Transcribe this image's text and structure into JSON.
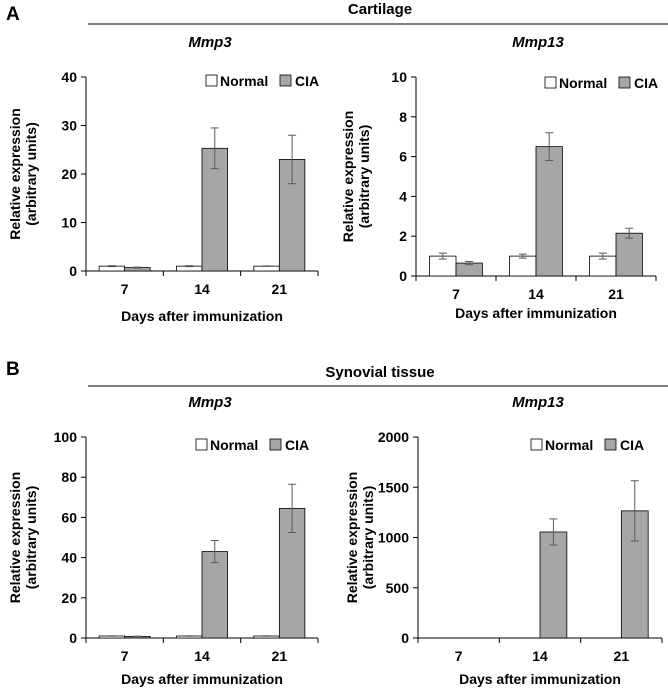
{
  "panels": [
    {
      "label": "A",
      "title": "Cartilage"
    },
    {
      "label": "B",
      "title": "Synovial tissue"
    }
  ],
  "legend": {
    "normal": "Normal",
    "cia": "CIA"
  },
  "colors": {
    "normal": "#ffffff",
    "cia": "#a6a6a6",
    "axis": "#000000",
    "error": "#595959"
  },
  "chart_data": [
    {
      "type": "bar",
      "panel": "A",
      "section": "Cartilage",
      "title": "Mmp3",
      "categories": [
        "7",
        "14",
        "21"
      ],
      "xlabel": "Days after immunization",
      "ylabel_lines": [
        "Relative expression",
        "(arbitrary units)"
      ],
      "ylim": [
        0,
        40
      ],
      "yticks": [
        0,
        10,
        20,
        30,
        40
      ],
      "series": [
        {
          "name": "Normal",
          "values": [
            1,
            1,
            1
          ],
          "errors": [
            0.1,
            0.1,
            0.05
          ]
        },
        {
          "name": "CIA",
          "values": [
            0.7,
            25.3,
            23.0
          ],
          "errors": [
            0.1,
            4.2,
            5.0
          ]
        }
      ],
      "legend_position": "top-right"
    },
    {
      "type": "bar",
      "panel": "A",
      "section": "Cartilage",
      "title": "Mmp13",
      "categories": [
        "7",
        "14",
        "21"
      ],
      "xlabel": "Days after immunization",
      "ylabel_lines": [
        "Relative expression",
        "(arbitrary units)"
      ],
      "ylim": [
        0,
        10
      ],
      "yticks": [
        0,
        2,
        4,
        6,
        8,
        10
      ],
      "series": [
        {
          "name": "Normal",
          "values": [
            1,
            1,
            1
          ],
          "errors": [
            0.15,
            0.1,
            0.15
          ]
        },
        {
          "name": "CIA",
          "values": [
            0.65,
            6.5,
            2.15
          ],
          "errors": [
            0.08,
            0.7,
            0.25
          ]
        }
      ],
      "legend_position": "top-right"
    },
    {
      "type": "bar",
      "panel": "B",
      "section": "Synovial tissue",
      "title": "Mmp3",
      "categories": [
        "7",
        "14",
        "21"
      ],
      "xlabel": "Days after immunization",
      "ylabel_lines": [
        "Relative expression",
        "(arbitrary units)"
      ],
      "ylim": [
        0,
        100
      ],
      "yticks": [
        0,
        20,
        40,
        60,
        80,
        100
      ],
      "series": [
        {
          "name": "Normal",
          "values": [
            1,
            1,
            1
          ],
          "errors": [
            0.1,
            0.1,
            0.1
          ]
        },
        {
          "name": "CIA",
          "values": [
            0.8,
            43,
            64.5
          ],
          "errors": [
            0.1,
            5.5,
            12
          ]
        }
      ],
      "legend_position": "top-right"
    },
    {
      "type": "bar",
      "panel": "B",
      "section": "Synovial tissue",
      "title": "Mmp13",
      "categories": [
        "7",
        "14",
        "21"
      ],
      "xlabel": "Days after immunization",
      "ylabel_lines": [
        "Relative expression",
        "(arbitrary units)"
      ],
      "ylim": [
        0,
        2000
      ],
      "yticks": [
        0,
        500,
        1000,
        1500,
        2000
      ],
      "series": [
        {
          "name": "Normal",
          "values": [
            1,
            1,
            1
          ],
          "errors": [
            0,
            0,
            0
          ]
        },
        {
          "name": "CIA",
          "values": [
            1,
            1055,
            1265
          ],
          "errors": [
            0,
            130,
            300
          ]
        }
      ],
      "legend_position": "top-right"
    }
  ]
}
